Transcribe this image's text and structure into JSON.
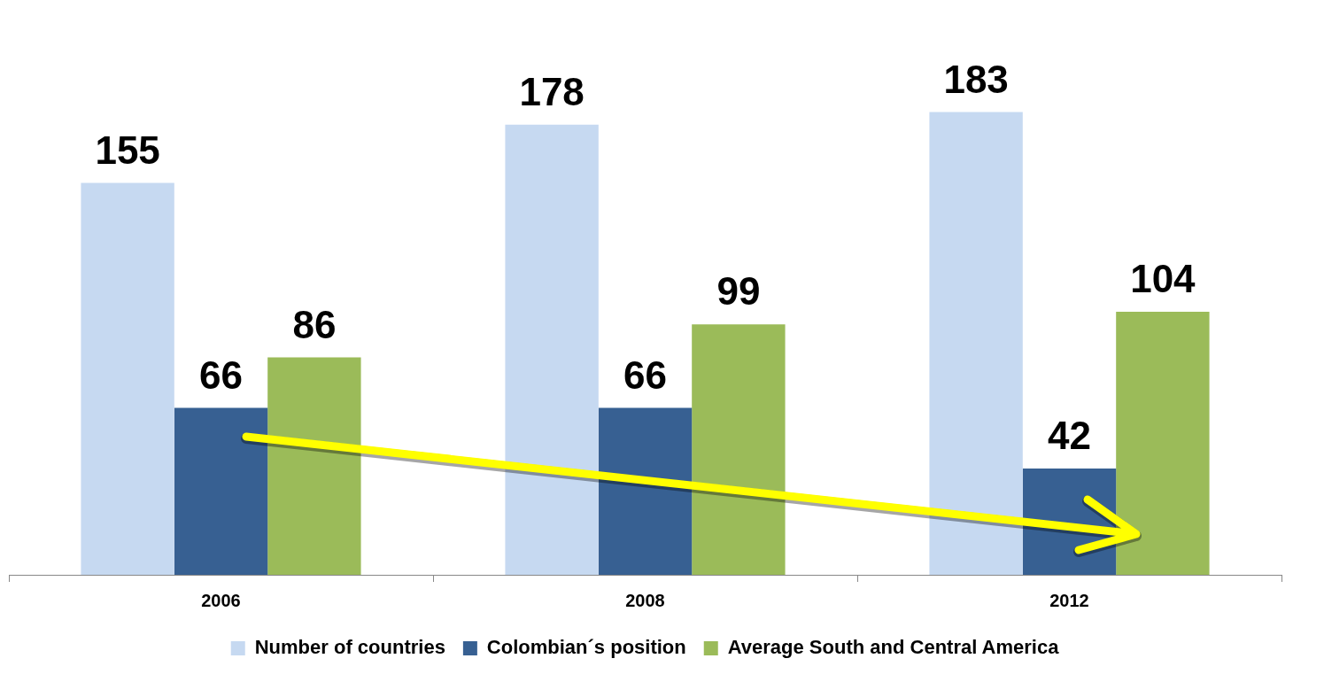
{
  "chart_data": {
    "type": "bar",
    "categories": [
      "2006",
      "2008",
      "2012"
    ],
    "series": [
      {
        "name": "Number of countries",
        "color": "#c6d9f1",
        "values": [
          155,
          178,
          183
        ]
      },
      {
        "name": "Colombian´s position",
        "color": "#376092",
        "values": [
          66,
          66,
          42
        ]
      },
      {
        "name": "Average South and Central America",
        "color": "#9bbb59",
        "values": [
          86,
          99,
          104
        ]
      }
    ],
    "data_labels": true,
    "legend": "bottom",
    "grid": false
  }
}
